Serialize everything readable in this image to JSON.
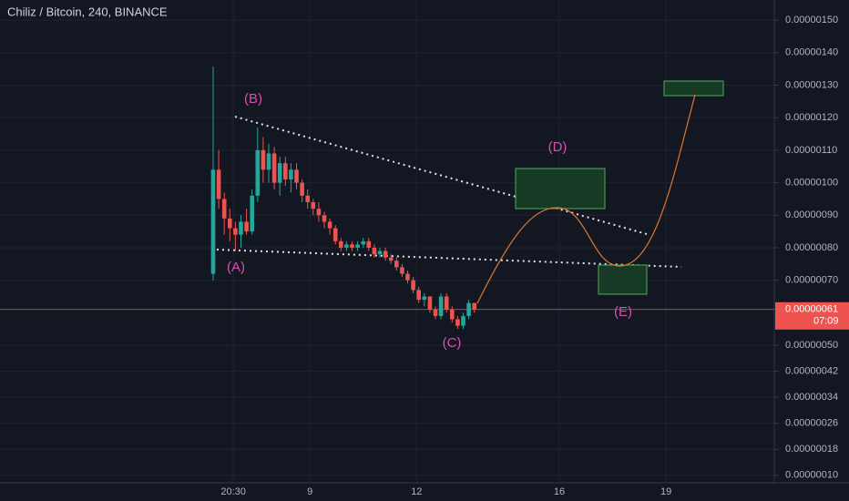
{
  "chart_data": {
    "type": "candlestick",
    "title": "Chiliz / Bitcoin, 240, BINANCE",
    "up_color": "#26a69a",
    "down_color": "#ef5350",
    "grid": true,
    "open": [
      7.2e-07,
      1.04e-06,
      9.5e-07,
      8.9e-07,
      8.6e-07,
      8.4e-07,
      8.8e-07,
      8.5e-07,
      9.6e-07,
      1.1e-06,
      1.04e-06,
      1.09e-06,
      1e-06,
      1.06e-06,
      1.01e-06,
      1.04e-06,
      1e-06,
      9.6e-07,
      9.4e-07,
      9.2e-07,
      9e-07,
      8.8e-07,
      8.6e-07,
      8.2e-07,
      8e-07,
      8.1e-07,
      8e-07,
      8.1e-07,
      8.2e-07,
      8e-07,
      7.8e-07,
      7.9e-07,
      7.7e-07,
      7.6e-07,
      7.4e-07,
      7.2e-07,
      7e-07,
      6.7e-07,
      6.4e-07,
      6.5e-07,
      6.1e-07,
      5.9e-07,
      6.5e-07,
      6.1e-07,
      5.8e-07,
      5.6e-07,
      5.9e-07,
      6.3e-07
    ],
    "high": [
      1.357e-06,
      1.1e-06,
      9.7e-07,
      9.2e-07,
      8.8e-07,
      9e-07,
      9.2e-07,
      9.8e-07,
      1.17e-06,
      1.14e-06,
      1.12e-06,
      1.11e-06,
      1.08e-06,
      1.08e-06,
      1.06e-06,
      1.06e-06,
      1.01e-06,
      9.8e-07,
      9.5e-07,
      9.4e-07,
      9.1e-07,
      8.9e-07,
      8.7e-07,
      8.3e-07,
      8.2e-07,
      8.2e-07,
      8.2e-07,
      8.3e-07,
      8.3e-07,
      8.1e-07,
      8e-07,
      8e-07,
      7.8e-07,
      7.7e-07,
      7.5e-07,
      7.3e-07,
      7.1e-07,
      6.8e-07,
      6.6e-07,
      6.5e-07,
      6.2e-07,
      6.6e-07,
      6.6e-07,
      6.2e-07,
      5.9e-07,
      6e-07,
      6.4e-07,
      6.3e-07
    ],
    "low": [
      7e-07,
      9.2e-07,
      8.4e-07,
      8.2e-07,
      7.9e-07,
      8e-07,
      8.4e-07,
      8.4e-07,
      9.4e-07,
      1e-06,
      1e-06,
      9.8e-07,
      9.6e-07,
      9.9e-07,
      9.7e-07,
      9.8e-07,
      9.4e-07,
      9.2e-07,
      9e-07,
      8.8e-07,
      8.6e-07,
      8.4e-07,
      8.1e-07,
      7.9e-07,
      7.9e-07,
      7.9e-07,
      7.9e-07,
      8e-07,
      7.9e-07,
      7.7e-07,
      7.7e-07,
      7.6e-07,
      7.5e-07,
      7.3e-07,
      7.1e-07,
      6.9e-07,
      6.6e-07,
      6.3e-07,
      6.2e-07,
      6e-07,
      5.8e-07,
      5.8e-07,
      6e-07,
      5.7e-07,
      5.5e-07,
      5.5e-07,
      5.8e-07,
      6e-07
    ],
    "close": [
      1.04e-06,
      9.5e-07,
      8.9e-07,
      8.6e-07,
      8.4e-07,
      8.8e-07,
      8.5e-07,
      9.6e-07,
      1.1e-06,
      1.04e-06,
      1.09e-06,
      1e-06,
      1.06e-06,
      1.01e-06,
      1.04e-06,
      1e-06,
      9.6e-07,
      9.4e-07,
      9.2e-07,
      9e-07,
      8.8e-07,
      8.6e-07,
      8.2e-07,
      8e-07,
      8.1e-07,
      8e-07,
      8.1e-07,
      8.2e-07,
      8e-07,
      7.8e-07,
      7.9e-07,
      7.7e-07,
      7.6e-07,
      7.4e-07,
      7.2e-07,
      7e-07,
      6.7e-07,
      6.4e-07,
      6.5e-07,
      6.1e-07,
      5.9e-07,
      6.5e-07,
      6.1e-07,
      5.8e-07,
      5.6e-07,
      5.9e-07,
      6.3e-07,
      6.1e-07
    ],
    "xlim": [
      -38.4,
      101
    ],
    "xticks": [
      {
        "value": 3.6,
        "label": "20:30"
      },
      9,
      12,
      16,
      19
    ],
    "ylim": [
      7.7e-08,
      1.562e-06
    ],
    "yticks": [
      {
        "value": 1.5e-06,
        "label": "0.00000150"
      },
      {
        "value": 1.4e-06,
        "label": "0.00000140"
      },
      {
        "value": 1.3e-06,
        "label": "0.00000130"
      },
      {
        "value": 1.2e-06,
        "label": "0.00000120"
      },
      {
        "value": 1.1e-06,
        "label": "0.00000110"
      },
      {
        "value": 1e-06,
        "label": "0.00000100"
      },
      {
        "value": 9e-07,
        "label": "0.00000090"
      },
      {
        "value": 8e-07,
        "label": "0.00000080"
      },
      {
        "value": 7e-07,
        "label": "0.00000070"
      },
      {
        "value": 5e-07,
        "label": "0.00000050"
      },
      {
        "value": 4.2e-07,
        "label": "0.00000042"
      },
      {
        "value": 3.4e-07,
        "label": "0.00000034"
      },
      {
        "value": 2.6e-07,
        "label": "0.00000026"
      },
      {
        "value": 1.8e-07,
        "label": "0.00000018"
      },
      {
        "value": 1e-07,
        "label": "0.00000010"
      }
    ],
    "last_price": {
      "value": 6.1e-07,
      "label": "0.00000061"
    },
    "countdown": "07:09",
    "annotations": [
      "(A)",
      "(B)",
      "(C)",
      "(D)",
      "(E)"
    ]
  }
}
